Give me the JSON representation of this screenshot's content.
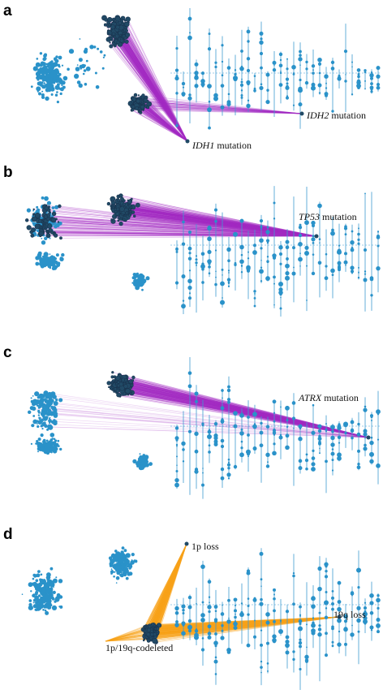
{
  "colors": {
    "node": "#2a92c9",
    "node_highlight": "#214a66",
    "edge_purple": "#a22bc4",
    "edge_orange": "#f7a319",
    "stem": "#3f9bd1"
  },
  "panels": [
    {
      "letter": "a",
      "annotations": [
        {
          "gene": "IDH2",
          "rest": " mutation"
        },
        {
          "gene": "IDH1",
          "rest": " mutation"
        }
      ]
    },
    {
      "letter": "b",
      "annotations": [
        {
          "gene": "TP53",
          "rest": " mutation"
        }
      ]
    },
    {
      "letter": "c",
      "annotations": [
        {
          "gene": "ATRX",
          "rest": " mutation"
        }
      ]
    },
    {
      "letter": "d",
      "annotations": [
        {
          "gene": "",
          "rest": "1p loss"
        },
        {
          "gene": "",
          "rest": "19q loss"
        },
        {
          "gene": "",
          "rest": "1p/19q-codeleted"
        }
      ]
    }
  ]
}
